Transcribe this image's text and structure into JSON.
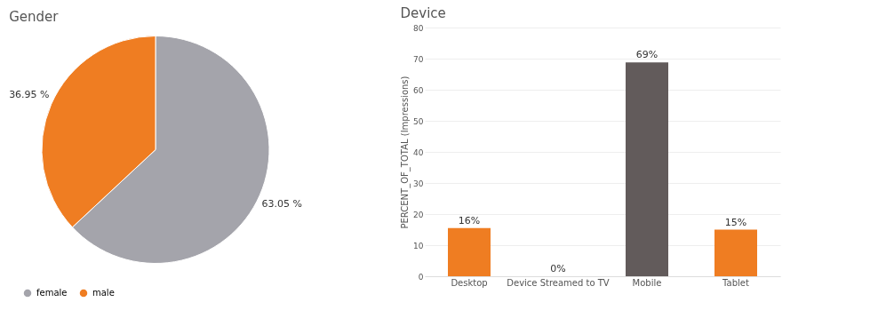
{
  "chart_data": [
    {
      "type": "pie",
      "title": "Gender",
      "categories": [
        "female",
        "male"
      ],
      "values": [
        63.05,
        36.95
      ],
      "colors": [
        "#a4a4ab",
        "#ef7d22"
      ],
      "value_labels": [
        "63.05 %",
        "36.95 %"
      ],
      "legend": "bottom"
    },
    {
      "type": "bar",
      "title": "Device",
      "ylabel": "PERCENT_OF_TOTAL (Impressions)",
      "categories": [
        "Desktop",
        "Device Streamed to TV",
        "Mobile",
        "Tablet"
      ],
      "values": [
        15.5,
        0,
        68.8,
        15.0
      ],
      "colors": [
        "#ef7d22",
        "#ef7d22",
        "#625b5b",
        "#ef7d22"
      ],
      "value_labels": [
        "16%",
        "0%",
        "69%",
        "15%"
      ],
      "ylim": [
        0,
        80
      ],
      "yticks": [
        0,
        10,
        20,
        30,
        40,
        50,
        60,
        70,
        80
      ],
      "grid": "y",
      "legend": false
    }
  ]
}
